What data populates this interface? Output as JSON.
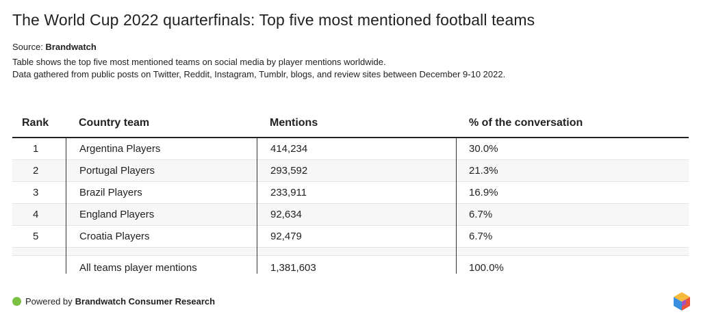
{
  "header": {
    "title": "The World Cup 2022 quarterfinals: Top five most mentioned football teams",
    "source_label": "Source: ",
    "source_name": "Brandwatch",
    "description_1": "Table shows the top five most mentioned teams on social media by player mentions worldwide.",
    "description_2": "Data gathered from public posts on Twitter, Reddit, Instagram, Tumblr, blogs, and review sites between December 9-10 2022."
  },
  "chart_data": {
    "type": "table",
    "columns": [
      "Rank",
      "Country team",
      "Mentions",
      "% of the conversation"
    ],
    "rows": [
      {
        "rank": "1",
        "team": "Argentina Players",
        "mentions": "414,234",
        "pct": "30.0%"
      },
      {
        "rank": "2",
        "team": "Portugal Players",
        "mentions": "293,592",
        "pct": "21.3%"
      },
      {
        "rank": "3",
        "team": "Brazil Players",
        "mentions": "233,911",
        "pct": "16.9%"
      },
      {
        "rank": "4",
        "team": "England Players",
        "mentions": "92,634",
        "pct": "6.7%"
      },
      {
        "rank": "5",
        "team": "Croatia Players",
        "mentions": "92,479",
        "pct": "6.7%"
      }
    ],
    "total": {
      "rank": "",
      "team": "All teams player mentions",
      "mentions": "1,381,603",
      "pct": "100.0%"
    }
  },
  "footer": {
    "powered_by": "Powered by",
    "brand": "Brandwatch Consumer Research",
    "dot_color": "#7ac143"
  }
}
